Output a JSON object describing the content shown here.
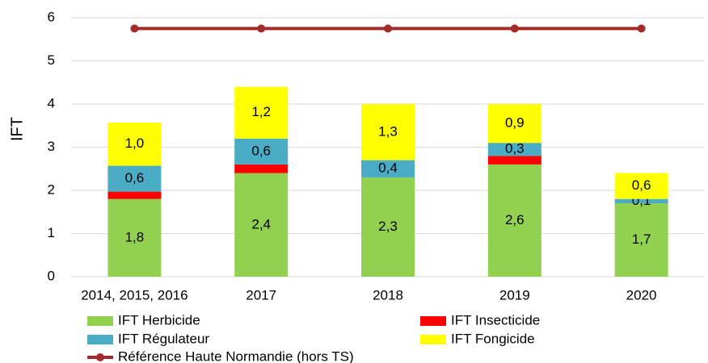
{
  "chart_data": {
    "type": "bar",
    "stacked": true,
    "y_label": "IFT",
    "categories": [
      "2014, 2015, 2016",
      "2017",
      "2018",
      "2019",
      "2020"
    ],
    "series": [
      {
        "name": "IFT Herbicide",
        "color": "#92d050",
        "values": [
          1.8,
          2.4,
          2.3,
          2.6,
          1.7
        ],
        "value_labels": [
          "1,8",
          "2,4",
          "2,3",
          "2,6",
          "1,7"
        ]
      },
      {
        "name": "IFT Insecticide",
        "color": "#ff0000",
        "values": [
          0.17,
          0.2,
          0,
          0.2,
          0
        ]
      },
      {
        "name": "IFT Régulateur",
        "color": "#4bacc6",
        "values": [
          0.6,
          0.6,
          0.4,
          0.3,
          0.1
        ],
        "value_labels": [
          "0,6",
          "0,6",
          "0,4",
          "0,3",
          "0,1"
        ]
      },
      {
        "name": "IFT Fongicide",
        "color": "#ffff00",
        "values": [
          1.0,
          1.2,
          1.3,
          0.9,
          0.6
        ],
        "value_labels": [
          "1,0",
          "1,2",
          "1,3",
          "0,9",
          "0,6"
        ]
      },
      {
        "name": "Référence Haute Normandie (hors TS)",
        "type": "line",
        "color": "#a52a2a",
        "values": [
          5.75,
          5.75,
          5.75,
          5.75,
          5.75
        ]
      }
    ],
    "ylim": [
      0,
      6
    ],
    "yticks": [
      0,
      1,
      2,
      3,
      4,
      5,
      6
    ],
    "grid": true
  }
}
